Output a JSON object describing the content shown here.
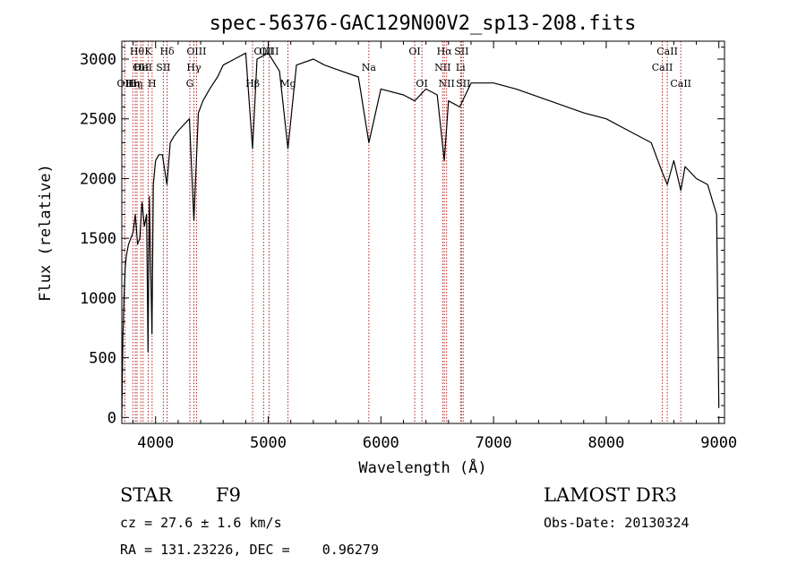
{
  "chart_data": {
    "type": "line",
    "title": "spec-56376-GAC129N00V2_sp13-208.fits",
    "xlabel": "Wavelength (Å)",
    "ylabel": "Flux (relative)",
    "xlim": [
      3700,
      9050
    ],
    "ylim": [
      -50,
      3150
    ],
    "x_ticks": [
      4000,
      5000,
      6000,
      7000,
      8000,
      9000
    ],
    "y_ticks": [
      0,
      500,
      1000,
      1500,
      2000,
      2500,
      3000
    ],
    "series": [
      {
        "name": "flux",
        "x": [
          3700,
          3710,
          3720,
          3730,
          3740,
          3760,
          3780,
          3800,
          3820,
          3840,
          3860,
          3880,
          3900,
          3920,
          3933,
          3945,
          3968,
          3980,
          4000,
          4030,
          4060,
          4101,
          4130,
          4160,
          4200,
          4250,
          4300,
          4340,
          4380,
          4420,
          4480,
          4550,
          4600,
          4700,
          4800,
          4861,
          4900,
          5000,
          5100,
          5175,
          5250,
          5400,
          5500,
          5650,
          5800,
          5893,
          6000,
          6200,
          6300,
          6400,
          6500,
          6563,
          6600,
          6700,
          6800,
          7000,
          7200,
          7500,
          7800,
          8000,
          8200,
          8400,
          8498,
          8542,
          8600,
          8662,
          8700,
          8800,
          8900,
          8980,
          9000
        ],
        "y": [
          0,
          700,
          1000,
          1250,
          1350,
          1450,
          1500,
          1550,
          1700,
          1450,
          1500,
          1800,
          1600,
          1700,
          550,
          1850,
          700,
          1950,
          2150,
          2200,
          2200,
          1950,
          2300,
          2350,
          2400,
          2450,
          2500,
          1650,
          2550,
          2650,
          2750,
          2850,
          2950,
          3000,
          3050,
          2250,
          3000,
          3050,
          2900,
          2250,
          2950,
          3000,
          2950,
          2900,
          2850,
          2300,
          2750,
          2700,
          2650,
          2750,
          2700,
          2150,
          2650,
          2600,
          2800,
          2800,
          2750,
          2650,
          2550,
          2500,
          2400,
          2300,
          2050,
          1950,
          2150,
          1900,
          2100,
          2000,
          1950,
          1700,
          80
        ]
      }
    ],
    "lines": [
      {
        "wl": 3727,
        "tier": 2,
        "label": "OII"
      },
      {
        "wl": 3798,
        "tier": 2,
        "label": "Hη"
      },
      {
        "wl": 3820,
        "tier": 2,
        "label": "Hη"
      },
      {
        "wl": 3835,
        "tier": 0,
        "label": "Hθ"
      },
      {
        "wl": 3869,
        "tier": 1,
        "label": "OII"
      },
      {
        "wl": 3889,
        "tier": 1,
        "label": "HeI"
      },
      {
        "wl": 3934,
        "tier": 0,
        "label": "K"
      },
      {
        "wl": 3969,
        "tier": 2,
        "label": "H"
      },
      {
        "wl": 4069,
        "tier": 1,
        "label": "SII"
      },
      {
        "wl": 4102,
        "tier": 0,
        "label": "Hδ"
      },
      {
        "wl": 4304,
        "tier": 2,
        "label": "G"
      },
      {
        "wl": 4340,
        "tier": 1,
        "label": "Hγ"
      },
      {
        "wl": 4363,
        "tier": 0,
        "label": "OIII"
      },
      {
        "wl": 4861,
        "tier": 2,
        "label": "Hβ"
      },
      {
        "wl": 4959,
        "tier": 0,
        "label": "OIII"
      },
      {
        "wl": 5007,
        "tier": 0,
        "label": "OIII"
      },
      {
        "wl": 5175,
        "tier": 2,
        "label": "Mg"
      },
      {
        "wl": 5893,
        "tier": 1,
        "label": "Na"
      },
      {
        "wl": 6300,
        "tier": 0,
        "label": "OI"
      },
      {
        "wl": 6364,
        "tier": 2,
        "label": "OI"
      },
      {
        "wl": 6548,
        "tier": 1,
        "label": "NII"
      },
      {
        "wl": 6563,
        "tier": 0,
        "label": "Hα"
      },
      {
        "wl": 6583,
        "tier": 2,
        "label": "NII"
      },
      {
        "wl": 6707,
        "tier": 1,
        "label": "Li"
      },
      {
        "wl": 6716,
        "tier": 0,
        "label": "SII"
      },
      {
        "wl": 6731,
        "tier": 2,
        "label": "SII"
      },
      {
        "wl": 8498,
        "tier": 1,
        "label": "CaII"
      },
      {
        "wl": 8542,
        "tier": 0,
        "label": "CaII"
      },
      {
        "wl": 8662,
        "tier": 2,
        "label": "CaII"
      }
    ]
  },
  "info": {
    "class": "STAR",
    "subclass": "F9",
    "survey": "LAMOST DR3",
    "cz": "cz = 27.6 ± 1.6 km/s",
    "obs_date": "Obs-Date: 20130324",
    "coords": "RA = 131.23226, DEC =    0.96279"
  }
}
